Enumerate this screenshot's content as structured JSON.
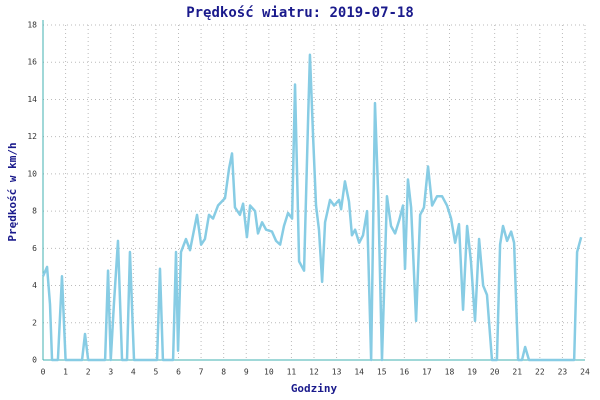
{
  "chart_data": {
    "type": "line",
    "title": "Prędkość wiatru: 2019-07-18",
    "x_label": "Godziny",
    "y_label": "Prędkość w km/h",
    "x": [
      0,
      0.18,
      0.31,
      0.4,
      0.66,
      0.84,
      1.0,
      1.73,
      1.86,
      2.0,
      2.75,
      2.88,
      3.0,
      3.14,
      3.32,
      3.5,
      3.72,
      3.85,
      4.03,
      5.05,
      5.18,
      5.31,
      5.76,
      5.89,
      5.98,
      6.11,
      6.33,
      6.51,
      6.82,
      7.0,
      7.17,
      7.35,
      7.53,
      7.75,
      8.06,
      8.24,
      8.37,
      8.5,
      8.72,
      8.86,
      9.03,
      9.17,
      9.39,
      9.52,
      9.7,
      9.88,
      10.14,
      10.32,
      10.5,
      10.67,
      10.85,
      11.03,
      11.16,
      11.34,
      11.56,
      11.74,
      11.82,
      11.96,
      12.09,
      12.22,
      12.36,
      12.49,
      12.71,
      12.89,
      13.11,
      13.2,
      13.37,
      13.55,
      13.68,
      13.82,
      14.0,
      14.17,
      14.35,
      14.53,
      14.7,
      14.84,
      15.01,
      15.23,
      15.41,
      15.59,
      15.77,
      15.94,
      16.03,
      16.16,
      16.3,
      16.52,
      16.7,
      16.87,
      17.05,
      17.23,
      17.45,
      17.67,
      17.89,
      18.07,
      18.25,
      18.42,
      18.6,
      18.78,
      18.95,
      19.13,
      19.31,
      19.49,
      19.66,
      19.88,
      20.1,
      20.24,
      20.37,
      20.55,
      20.73,
      20.86,
      21.04,
      21.21,
      21.35,
      21.52,
      23.52,
      23.65,
      23.83
    ],
    "series": [
      {
        "name": "Prędkość wiatru",
        "color": "#87cce4",
        "values": [
          4.5,
          5.0,
          3.0,
          0,
          0,
          4.5,
          0,
          0,
          1.4,
          0,
          0,
          4.8,
          0,
          3.0,
          6.4,
          0,
          0,
          5.8,
          0,
          0,
          4.9,
          0,
          0,
          5.8,
          0.5,
          5.8,
          6.5,
          5.9,
          7.8,
          6.2,
          6.5,
          7.8,
          7.6,
          8.3,
          8.7,
          10.3,
          11.1,
          8.2,
          7.8,
          8.4,
          6.6,
          8.3,
          8.0,
          6.8,
          7.4,
          7.0,
          6.9,
          6.4,
          6.2,
          7.2,
          7.9,
          7.6,
          14.8,
          5.3,
          4.8,
          13.0,
          16.4,
          12.0,
          8.3,
          7.0,
          4.2,
          7.4,
          8.6,
          8.3,
          8.6,
          8.1,
          9.6,
          8.5,
          6.7,
          7.0,
          6.3,
          6.7,
          8.0,
          0,
          13.8,
          9.0,
          0,
          8.8,
          7.2,
          6.8,
          7.5,
          8.3,
          4.9,
          9.7,
          8.2,
          2.1,
          7.8,
          8.2,
          10.4,
          8.3,
          8.8,
          8.8,
          8.3,
          7.6,
          6.3,
          7.3,
          2.7,
          7.2,
          5.3,
          2.1,
          6.5,
          4.0,
          3.5,
          0,
          0,
          6.2,
          7.2,
          6.4,
          6.9,
          6.3,
          0,
          0,
          0.7,
          0,
          0,
          5.8,
          6.6
        ]
      }
    ],
    "xlim": [
      0,
      24
    ],
    "xticks": [
      0,
      1,
      2,
      3,
      4,
      5,
      6,
      7,
      8,
      9,
      10,
      11,
      12,
      13,
      14,
      15,
      16,
      17,
      18,
      19,
      20,
      21,
      22,
      23,
      24
    ],
    "ylim": [
      0,
      18
    ],
    "yticks": [
      0,
      2,
      4,
      6,
      8,
      10,
      12,
      14,
      16,
      18
    ],
    "grid": true
  }
}
